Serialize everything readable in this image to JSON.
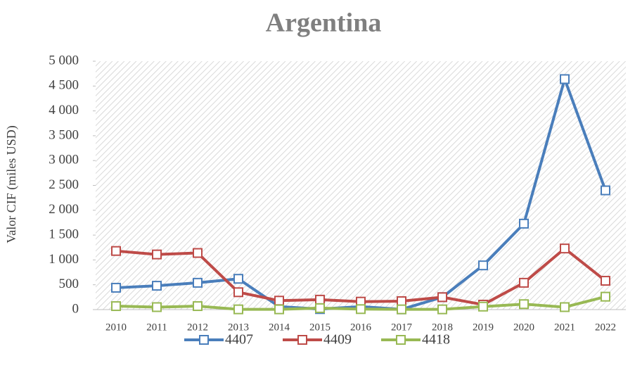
{
  "chart_data": {
    "type": "line",
    "title": "Argentina",
    "y_label": "Valor CIF (miles USD)",
    "categories": [
      "2010",
      "2011",
      "2012",
      "2013",
      "2014",
      "2015",
      "2016",
      "2017",
      "2018",
      "2019",
      "2020",
      "2021",
      "2022"
    ],
    "series": [
      {
        "name": "4407",
        "color": "#4a7ebb",
        "values": [
          440,
          480,
          540,
          620,
          60,
          10,
          60,
          5,
          250,
          890,
          1730,
          4640,
          2400
        ]
      },
      {
        "name": "4409",
        "color": "#be4b48",
        "values": [
          1180,
          1110,
          1140,
          350,
          180,
          200,
          160,
          170,
          250,
          100,
          540,
          1230,
          580
        ]
      },
      {
        "name": "4418",
        "color": "#98b954",
        "values": [
          70,
          50,
          70,
          5,
          5,
          30,
          10,
          5,
          5,
          60,
          110,
          50,
          260
        ]
      }
    ],
    "ylim": [
      0,
      5000
    ],
    "yticks": [
      0,
      500,
      {
        "value": 1000,
        "label": "1 000"
      },
      {
        "value": 1500,
        "label": "1 500"
      },
      {
        "value": 2000,
        "label": "2 000"
      },
      {
        "value": 2500,
        "label": "2 500"
      },
      {
        "value": 3000,
        "label": "3 000"
      },
      {
        "value": 3500,
        "label": "3 500"
      },
      {
        "value": 4000,
        "label": "4 000"
      },
      {
        "value": 4500,
        "label": "4 500"
      },
      {
        "value": 5000,
        "label": "5 000"
      }
    ],
    "legend": "bottom"
  }
}
